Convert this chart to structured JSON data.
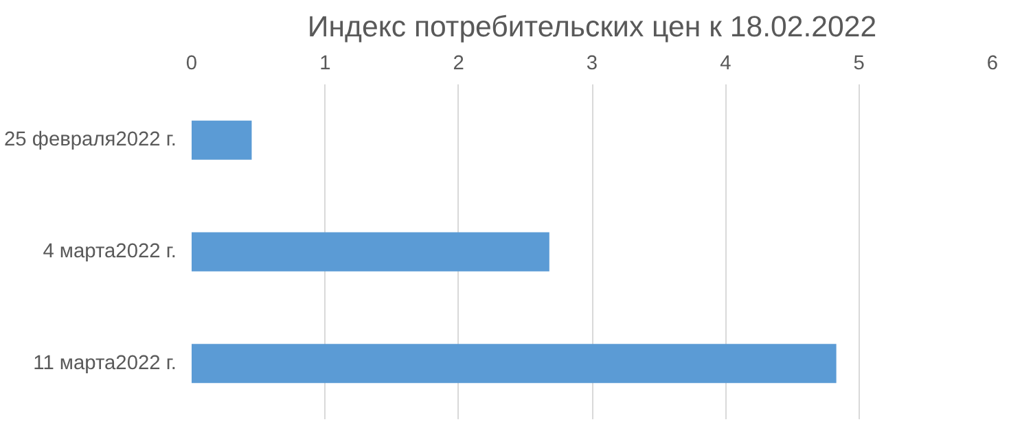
{
  "chart_data": {
    "type": "bar",
    "orientation": "horizontal",
    "title": "Индекс потребительских цен к 18.02.2022",
    "categories": [
      "25 февраля2022 г.",
      "4 марта2022 г.",
      "11 марта2022 г."
    ],
    "values": [
      0.45,
      2.68,
      4.83
    ],
    "color": "#5b9bd5",
    "xlim": [
      0,
      6
    ],
    "xticks": [
      0,
      1,
      2,
      3,
      4,
      5,
      6
    ],
    "grid": "x"
  }
}
